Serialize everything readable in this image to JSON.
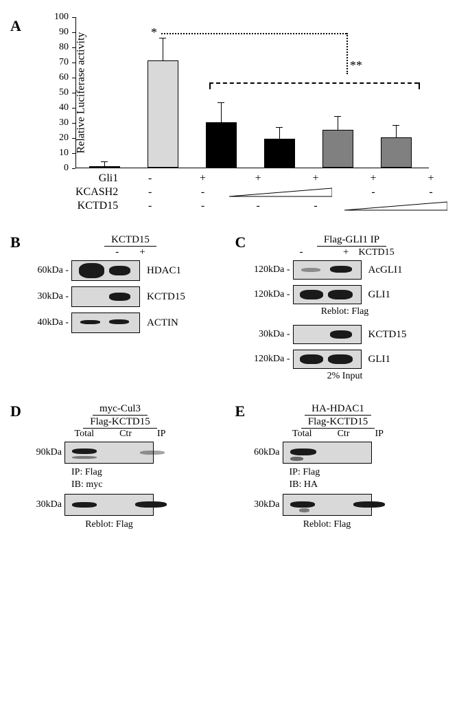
{
  "panelA": {
    "label": "A",
    "yaxis_label": "Relative Luciferase activity",
    "ylim": [
      0,
      100
    ],
    "ytick_step": 10,
    "bars": [
      {
        "value": 1,
        "err": 3,
        "color": "#000000"
      },
      {
        "value": 71,
        "err": 15,
        "color": "#d9d9d9"
      },
      {
        "value": 30,
        "err": 13,
        "color": "#000000"
      },
      {
        "value": 19,
        "err": 8,
        "color": "#000000"
      },
      {
        "value": 25,
        "err": 9,
        "color": "#808080"
      },
      {
        "value": 20,
        "err": 8,
        "color": "#808080"
      }
    ],
    "sig1": "*",
    "sig2": "**",
    "conditions": {
      "rows": [
        "Gli1",
        "KCASH2",
        "KCTD15"
      ],
      "grid": [
        [
          "-",
          "+",
          "+",
          "+",
          "+",
          "+"
        ],
        [
          "-",
          "-",
          "tri",
          "tri",
          "-",
          "-"
        ],
        [
          "-",
          "-",
          "-",
          "-",
          "tri",
          "tri"
        ]
      ]
    }
  },
  "panelB": {
    "label": "B",
    "header": "KCTD15",
    "conds": [
      "-",
      "+"
    ],
    "rows": [
      {
        "mw": "60kDa -",
        "target": "HDAC1",
        "bands": [
          {
            "l": 10,
            "w": 38,
            "h": 22,
            "t": 3
          },
          {
            "l": 55,
            "w": 32,
            "h": 14,
            "t": 7
          }
        ]
      },
      {
        "mw": "30kDa -",
        "target": "KCTD15",
        "bands": [
          {
            "l": 55,
            "w": 32,
            "h": 12,
            "t": 8
          }
        ]
      },
      {
        "mw": "40kDa -",
        "target": "ACTIN",
        "bands": [
          {
            "l": 12,
            "w": 30,
            "h": 6,
            "t": 10
          },
          {
            "l": 55,
            "w": 30,
            "h": 7,
            "t": 9
          }
        ]
      }
    ]
  },
  "panelC": {
    "label": "C",
    "header": "Flag-GLI1 IP",
    "cond_label": "KCTD15",
    "conds": [
      "-",
      "+"
    ],
    "ip_rows": [
      {
        "mw": "120kDa -",
        "target": "AcGLI1",
        "bands": [
          {
            "l": 12,
            "w": 28,
            "h": 6,
            "t": 10,
            "op": 0.4
          },
          {
            "l": 55,
            "w": 32,
            "h": 10,
            "t": 7
          }
        ]
      },
      {
        "mw": "120kDa -",
        "target": "GLI1",
        "bands": [
          {
            "l": 10,
            "w": 34,
            "h": 14,
            "t": 6
          },
          {
            "l": 52,
            "w": 36,
            "h": 14,
            "t": 6
          }
        ]
      }
    ],
    "reblot_label": "Reblot: Flag",
    "input_rows": [
      {
        "mw": "30kDa -",
        "target": "KCTD15",
        "bands": [
          {
            "l": 55,
            "w": 32,
            "h": 12,
            "t": 7
          }
        ]
      },
      {
        "mw": "120kDa -",
        "target": "GLI1",
        "bands": [
          {
            "l": 10,
            "w": 34,
            "h": 14,
            "t": 6
          },
          {
            "l": 52,
            "w": 36,
            "h": 14,
            "t": 6
          }
        ]
      }
    ],
    "input_label": "2% Input"
  },
  "panelD": {
    "label": "D",
    "header1": "myc-Cul3",
    "header2": "Flag-KCTD15",
    "lanes": [
      "Total",
      "Ctr",
      "IP"
    ],
    "rows": [
      {
        "mw": "90kDa",
        "bands": [
          {
            "l": 8,
            "w": 28,
            "h": 8,
            "t": 9
          },
          {
            "l": 8,
            "w": 28,
            "h": 4,
            "t": 20,
            "op": 0.5
          },
          {
            "l": 85,
            "w": 28,
            "h": 6,
            "t": 12,
            "op": 0.4
          }
        ]
      },
      {
        "mw": "30kDa",
        "bands": [
          {
            "l": 8,
            "w": 28,
            "h": 8,
            "t": 11
          },
          {
            "l": 80,
            "w": 36,
            "h": 9,
            "t": 10
          }
        ]
      }
    ],
    "ip_label": "IP: Flag",
    "ib_label": "IB:  myc",
    "reblot_label": "Reblot: Flag"
  },
  "panelE": {
    "label": "E",
    "header1": "HA-HDAC1",
    "header2": "Flag-KCTD15",
    "lanes": [
      "Total",
      "Ctr",
      "IP"
    ],
    "rows": [
      {
        "mw": "60kDa",
        "bands": [
          {
            "l": 8,
            "w": 30,
            "h": 10,
            "t": 9
          },
          {
            "l": 8,
            "w": 15,
            "h": 6,
            "t": 21,
            "op": 0.6
          }
        ]
      },
      {
        "mw": "30kDa",
        "bands": [
          {
            "l": 8,
            "w": 28,
            "h": 9,
            "t": 10
          },
          {
            "l": 18,
            "w": 12,
            "h": 6,
            "t": 20,
            "op": 0.5
          },
          {
            "l": 80,
            "w": 36,
            "h": 9,
            "t": 10
          }
        ]
      }
    ],
    "ip_label": "IP: Flag",
    "ib_label": "IB:  HA",
    "reblot_label": "Reblot: Flag"
  }
}
